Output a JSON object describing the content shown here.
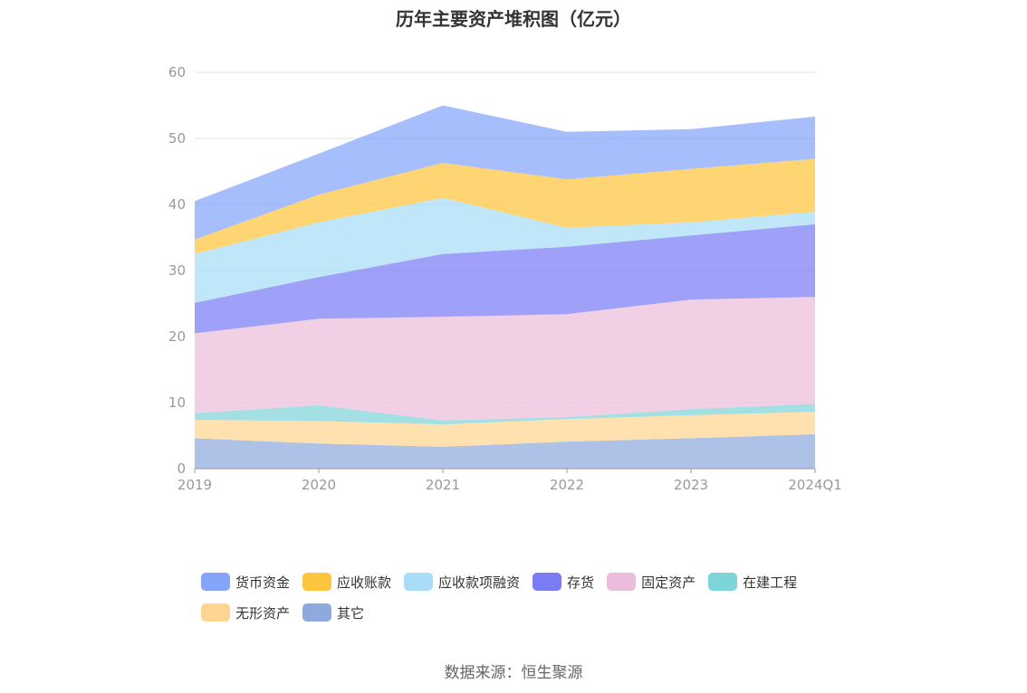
{
  "source_text": "数据来源：恒生聚源",
  "chart_data": {
    "type": "area",
    "stacked": true,
    "title": "历年主要资产堆积图（亿元）",
    "x": [
      "2019",
      "2020",
      "2021",
      "2022",
      "2023",
      "2024Q1"
    ],
    "ylim": [
      0,
      60
    ],
    "yticks": [
      0,
      10,
      20,
      30,
      40,
      50,
      60
    ],
    "grid": true,
    "legend_position": "bottom",
    "series": [
      {
        "name": "其它",
        "color": "#8eaadc",
        "values": [
          4.6,
          3.8,
          3.3,
          4.1,
          4.6,
          5.2
        ]
      },
      {
        "name": "无形资产",
        "color": "#ffd591",
        "values": [
          2.8,
          3.4,
          3.4,
          3.4,
          3.5,
          3.4
        ]
      },
      {
        "name": "在建工程",
        "color": "#7fd4d8",
        "values": [
          1.0,
          2.4,
          0.6,
          0.3,
          0.9,
          1.2
        ]
      },
      {
        "name": "固定资产",
        "color": "#ebbcdb",
        "values": [
          12.1,
          13.1,
          15.7,
          15.6,
          16.6,
          16.2
        ]
      },
      {
        "name": "存货",
        "color": "#7a7cf4",
        "values": [
          4.6,
          6.3,
          9.5,
          10.2,
          9.7,
          11.0
        ]
      },
      {
        "name": "应收款项融资",
        "color": "#a8dcf8",
        "values": [
          7.4,
          8.3,
          8.5,
          2.9,
          2.0,
          1.9
        ]
      },
      {
        "name": "应收账款",
        "color": "#ffc53d",
        "values": [
          2.2,
          4.2,
          5.3,
          7.3,
          8.1,
          8.0
        ]
      },
      {
        "name": "货币资金",
        "color": "#85a5fb",
        "values": [
          5.8,
          6.2,
          8.7,
          7.2,
          6.0,
          6.4
        ]
      }
    ],
    "legend_order": [
      "货币资金",
      "应收账款",
      "应收款项融资",
      "存货",
      "固定资产",
      "在建工程",
      "无形资产",
      "其它"
    ]
  }
}
